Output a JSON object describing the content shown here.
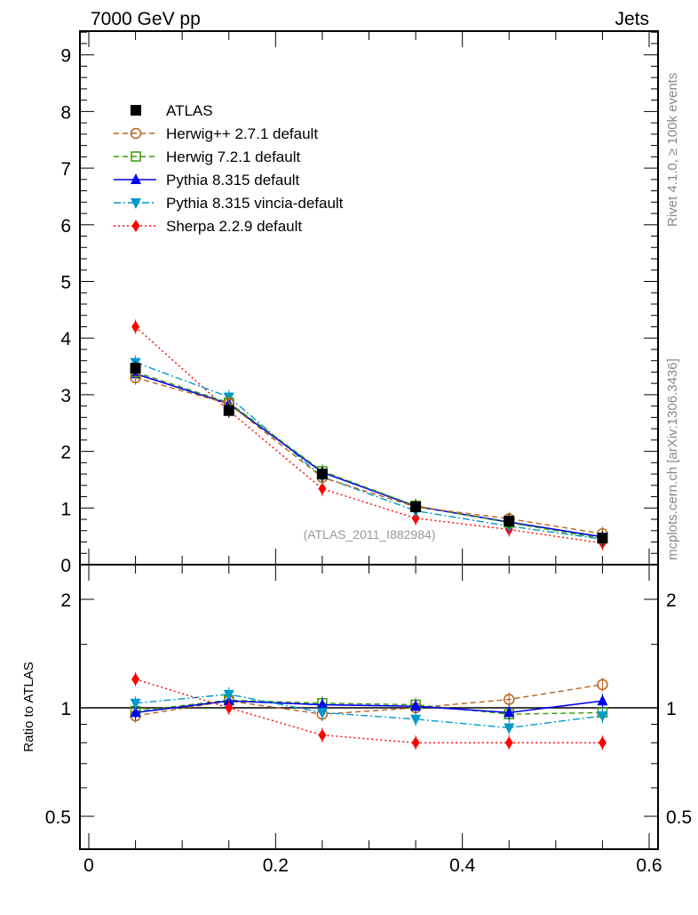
{
  "header": {
    "left": "7000 GeV pp",
    "right": "Jets"
  },
  "side_labels": {
    "rivet": "Rivet 4.1.0, ≥ 100k events",
    "mcplots": "mcplots.cern.ch [arXiv:1306.3436]"
  },
  "watermark": "(ATLAS_2011_I882984)",
  "chart_data": [
    {
      "type": "line",
      "panel": "main",
      "x": [
        0.05,
        0.15,
        0.25,
        0.35,
        0.45,
        0.55
      ],
      "xlim": [
        -0.01,
        0.6
      ],
      "ylim": [
        0,
        9.5
      ],
      "yticks": [
        "0",
        "1",
        "2",
        "3",
        "4",
        "5",
        "6",
        "7",
        "8",
        "9"
      ],
      "legend_position": "top-left",
      "series": [
        {
          "name": "ATLAS",
          "color": "#000000",
          "marker": "square",
          "dash": "none",
          "values": [
            3.47,
            2.72,
            1.6,
            1.02,
            0.77,
            0.47
          ]
        },
        {
          "name": "Herwig++ 2.7.1 default",
          "color": "#b8621b",
          "marker": "circle-open",
          "dash": "dashed",
          "values": [
            3.3,
            2.84,
            1.54,
            1.02,
            0.81,
            0.545
          ]
        },
        {
          "name": "Herwig 7.2.1 default",
          "color": "#3a9a0a",
          "marker": "square-open",
          "dash": "dashed",
          "values": [
            3.4,
            2.86,
            1.65,
            1.04,
            0.74,
            0.46
          ]
        },
        {
          "name": "Pythia 8.315 default",
          "color": "#0000ee",
          "marker": "triangle-up",
          "dash": "solid",
          "values": [
            3.37,
            2.84,
            1.63,
            1.03,
            0.75,
            0.49
          ]
        },
        {
          "name": "Pythia 8.315 vincia-default",
          "color": "#0099cc",
          "marker": "triangle-down",
          "dash": "dashdot",
          "values": [
            3.57,
            2.96,
            1.55,
            0.95,
            0.68,
            0.45
          ]
        },
        {
          "name": "Sherpa 2.2.9 default",
          "color": "#ff0000",
          "marker": "diamond",
          "dash": "dotted",
          "values": [
            4.2,
            2.72,
            1.34,
            0.82,
            0.62,
            0.38
          ]
        }
      ]
    },
    {
      "type": "line",
      "panel": "ratio",
      "ylabel": "Ratio to ATLAS",
      "yscale": "log",
      "ylim": [
        0.4,
        2.5
      ],
      "yticks": [
        "0.5",
        "1",
        "2"
      ],
      "xticks": [
        "0",
        "0.2",
        "0.4",
        "0.6"
      ],
      "series": [
        {
          "name": "Herwig++ 2.7.1 default",
          "values": [
            0.95,
            1.045,
            0.96,
            1.0,
            1.055,
            1.16
          ]
        },
        {
          "name": "Herwig 7.2.1 default",
          "values": [
            0.98,
            1.05,
            1.03,
            1.02,
            0.96,
            0.97
          ]
        },
        {
          "name": "Pythia 8.315 default",
          "values": [
            0.97,
            1.045,
            1.02,
            1.01,
            0.97,
            1.045
          ]
        },
        {
          "name": "Pythia 8.315 vincia-default",
          "values": [
            1.03,
            1.09,
            0.97,
            0.93,
            0.88,
            0.95
          ]
        },
        {
          "name": "Sherpa 2.2.9 default",
          "values": [
            1.2,
            1.0,
            0.84,
            0.8,
            0.8,
            0.8
          ]
        }
      ]
    }
  ]
}
